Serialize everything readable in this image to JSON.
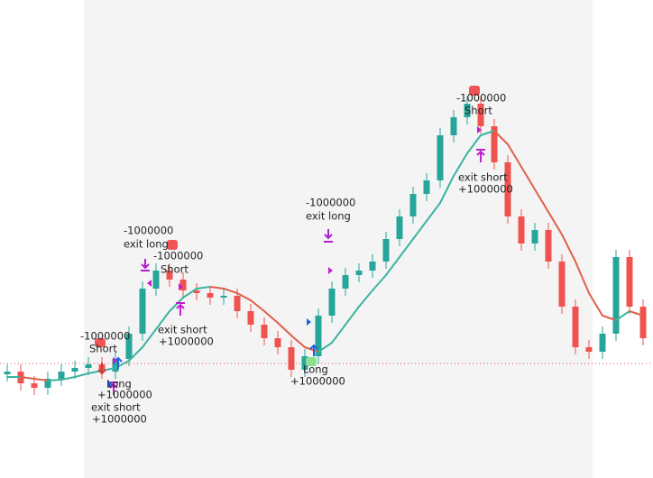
{
  "chart_data": {
    "type": "candlestick",
    "categories": [
      null,
      null,
      null,
      null,
      null,
      null,
      null,
      null,
      null,
      null,
      null,
      null,
      null,
      null,
      null,
      null,
      null,
      null,
      null,
      null,
      null,
      null,
      null,
      null,
      null,
      null,
      null,
      null,
      null,
      null,
      null,
      null,
      null,
      null,
      null,
      null,
      null,
      null,
      null,
      null,
      null,
      null,
      null,
      null,
      null,
      null,
      null,
      null
    ],
    "open": [
      115,
      118,
      105,
      100,
      110,
      118,
      122,
      126,
      118,
      132,
      160,
      210,
      230,
      220,
      208,
      205,
      200,
      202,
      185,
      170,
      155,
      145,
      120,
      135,
      180,
      210,
      225,
      230,
      240,
      265,
      290,
      315,
      330,
      380,
      400,
      415,
      390,
      350,
      290,
      260,
      275,
      240,
      190,
      145,
      140,
      160,
      245,
      190
    ],
    "high": [
      126,
      126,
      113,
      118,
      126,
      130,
      134,
      134,
      140,
      168,
      218,
      238,
      238,
      228,
      216,
      213,
      210,
      210,
      193,
      178,
      163,
      153,
      143,
      188,
      218,
      233,
      238,
      248,
      273,
      298,
      323,
      338,
      388,
      408,
      423,
      423,
      398,
      358,
      298,
      283,
      283,
      248,
      198,
      153,
      168,
      253,
      253,
      198
    ],
    "low": [
      107,
      97,
      92,
      92,
      102,
      110,
      114,
      110,
      110,
      124,
      152,
      202,
      212,
      200,
      197,
      192,
      192,
      177,
      162,
      147,
      137,
      112,
      112,
      127,
      172,
      202,
      217,
      222,
      232,
      257,
      282,
      307,
      322,
      372,
      392,
      382,
      342,
      282,
      252,
      252,
      232,
      182,
      137,
      132,
      132,
      152,
      182,
      147
    ],
    "close": [
      118,
      105,
      100,
      110,
      118,
      122,
      126,
      118,
      132,
      160,
      210,
      230,
      220,
      208,
      205,
      200,
      202,
      185,
      170,
      155,
      145,
      120,
      135,
      180,
      210,
      225,
      230,
      240,
      265,
      290,
      315,
      330,
      380,
      400,
      415,
      390,
      350,
      290,
      260,
      275,
      240,
      190,
      145,
      140,
      160,
      245,
      190,
      155
    ],
    "up_color": "#26a69a",
    "down_color": "#ef5350",
    "ma": [
      112,
      112,
      110,
      108,
      109,
      112,
      116,
      119,
      122,
      130,
      145,
      165,
      185,
      200,
      210,
      212,
      210,
      205,
      197,
      185,
      172,
      158,
      145,
      140,
      150,
      170,
      190,
      208,
      225,
      245,
      265,
      285,
      305,
      335,
      360,
      380,
      385,
      370,
      345,
      320,
      295,
      270,
      240,
      205,
      180,
      175,
      185,
      180
    ],
    "ma_up_color": "#3cb4a0",
    "ma_down_color": "#e0604a",
    "ref_line": 127,
    "ref_color": "#e05050",
    "ylim": [
      0,
      530
    ],
    "annotations": [
      "-1000000",
      "exit long",
      "-1000000",
      "Short",
      "exit short",
      "+1000000",
      "-1000000",
      "Short",
      "Long",
      "+1000000",
      "exit short",
      "+1000000",
      "-1000000",
      "exit long",
      "Long",
      "+1000000",
      "-1000000",
      "Short",
      "exit short",
      "+1000000"
    ]
  }
}
